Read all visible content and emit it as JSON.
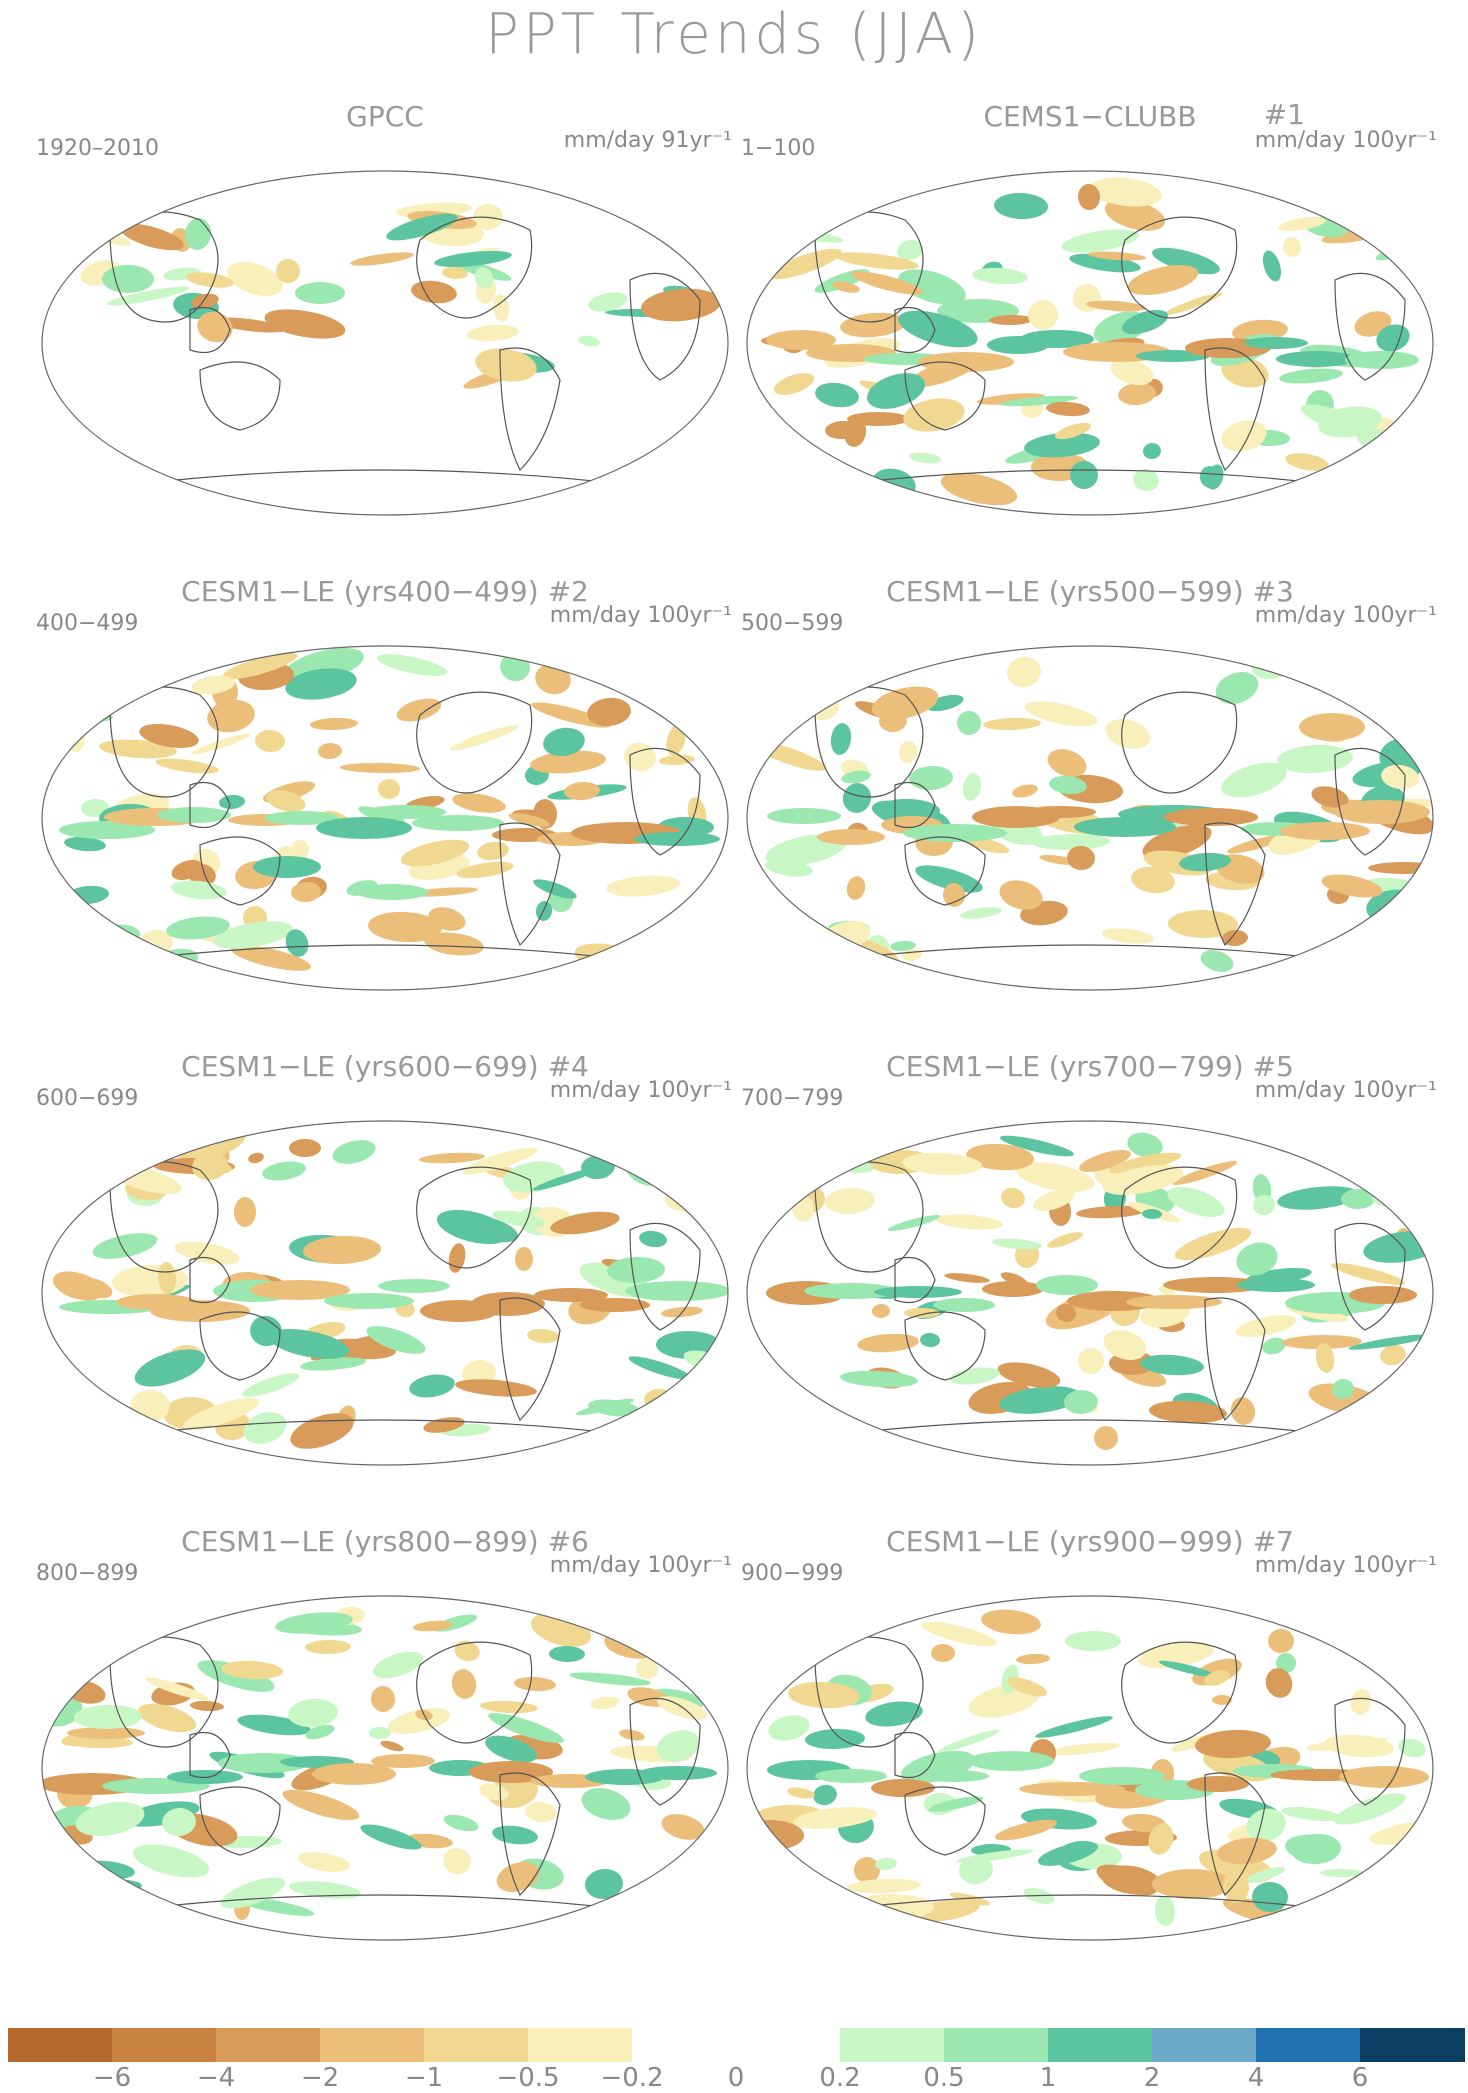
{
  "title": "PPT Trends (JJA)",
  "panels": [
    {
      "title": "GPCC",
      "hash": "",
      "period": "1920–2010",
      "units": "mm/day 91yr⁻¹"
    },
    {
      "title": "CEMS1−CLUBB",
      "hash": "#1",
      "period": "1−100",
      "units": "mm/day 100yr⁻¹"
    },
    {
      "title": "CESM1−LE (yrs400−499) #2",
      "hash": "",
      "period": "400−499",
      "units": "mm/day 100yr⁻¹"
    },
    {
      "title": "CESM1−LE (yrs500−599) #3",
      "hash": "",
      "period": "500−599",
      "units": "mm/day 100yr⁻¹"
    },
    {
      "title": "CESM1−LE (yrs600−699) #4",
      "hash": "",
      "period": "600−699",
      "units": "mm/day 100yr⁻¹"
    },
    {
      "title": "CESM1−LE (yrs700−799) #5",
      "hash": "",
      "period": "700−799",
      "units": "mm/day 100yr⁻¹"
    },
    {
      "title": "CESM1−LE (yrs800−899) #6",
      "hash": "",
      "period": "800−899",
      "units": "mm/day 100yr⁻¹"
    },
    {
      "title": "CESM1−LE (yrs900−999) #7",
      "hash": "",
      "period": "900−999",
      "units": "mm/day 100yr⁻¹"
    }
  ],
  "colorbar": {
    "colors": [
      "#b5692d",
      "#c9823f",
      "#d99b5a",
      "#ebbf7a",
      "#f1d891",
      "#f8efbb",
      "#ffffff",
      "#ffffff",
      "#c8f7c5",
      "#9ae8b0",
      "#5cc49e",
      "#6ea8c9",
      "#1f71b0",
      "#0a3f63"
    ],
    "tick_labels": [
      "−6",
      "−4",
      "−2",
      "−1",
      "−0.5",
      "−0.2",
      "0",
      "0.2",
      "0.5",
      "1",
      "2",
      "4",
      "6"
    ]
  }
}
